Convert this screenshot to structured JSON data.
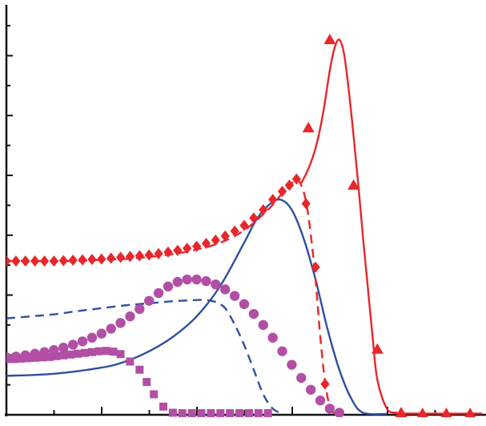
{
  "colors": {
    "red": "#e8262b",
    "blue": "#2f4f9f",
    "magenta": "#b24fa5",
    "axis": "#111111"
  },
  "chart_data": {
    "type": "line",
    "title": "",
    "xlabel": "",
    "ylabel": "",
    "xlim": [
      0,
      100
    ],
    "ylim": [
      0,
      100
    ],
    "grid": false,
    "legend": "none",
    "series": [
      {
        "key": "red-triangle-solid",
        "marker": "triangle",
        "line": "solid",
        "color": "red",
        "x": [
          62.0,
          63.5,
          65.0,
          66.5,
          68.0,
          69.0,
          70.0,
          71.0,
          72.0,
          73.0,
          74.0,
          75.0,
          76.0,
          77.0,
          78.0,
          80.0,
          82.0,
          84.0,
          100.0
        ],
        "y": [
          56.5,
          60.0,
          65.0,
          73.0,
          84.0,
          89.5,
          91.5,
          88.0,
          79.0,
          68.0,
          56.0,
          43.0,
          31.0,
          19.0,
          8.5,
          1.5,
          0.5,
          0.3,
          0.3
        ],
        "marker_x": [
          63.5,
          68.0,
          73.0,
          78.0,
          83.0,
          87.5,
          92.5,
          97.5
        ],
        "marker_y": [
          70.0,
          91.5,
          56.0,
          16.0,
          0.5,
          0.3,
          0.3,
          0.3
        ]
      },
      {
        "key": "red-diamond-dashed",
        "marker": "diamond",
        "line": "dashed",
        "color": "red",
        "x": [
          0,
          5,
          10,
          15,
          20,
          25,
          30,
          35,
          40,
          45,
          50,
          55,
          58,
          60,
          61,
          62,
          63,
          64,
          65,
          66,
          67,
          68,
          69
        ],
        "y": [
          37.5,
          37.5,
          37.5,
          37.5,
          37.8,
          38.0,
          38.5,
          39.2,
          40.3,
          42.0,
          45.0,
          50.0,
          54.0,
          56.5,
          57.5,
          56.0,
          52.0,
          44.0,
          33.0,
          19.0,
          8.0,
          2.0,
          0.3
        ],
        "marker_x": [
          0.0,
          2.0,
          4.0,
          6.0,
          8.0,
          10.0,
          12.0,
          14.0,
          16.0,
          18.0,
          20.0,
          22.0,
          24.0,
          26.0,
          28.0,
          30.0,
          32.0,
          34.0,
          36.0,
          38.0,
          40.0,
          42.0,
          44.0,
          46.0,
          48.0,
          50.0,
          52.0,
          54.0,
          56.0,
          58.0,
          59.5,
          61.0,
          63.0,
          65.0,
          67.0
        ],
        "marker_y": [
          37.5,
          37.5,
          37.5,
          37.5,
          37.5,
          37.5,
          37.6,
          37.7,
          37.8,
          37.9,
          38.0,
          38.2,
          38.4,
          38.6,
          38.8,
          39.0,
          39.3,
          39.7,
          40.1,
          40.6,
          41.1,
          41.8,
          42.6,
          43.6,
          44.8,
          46.2,
          48.0,
          50.0,
          52.5,
          54.5,
          56.0,
          57.5,
          51.5,
          36.0,
          7.5
        ]
      },
      {
        "key": "blue-solid",
        "marker": "none",
        "line": "solid",
        "color": "blue",
        "x": [
          0,
          10,
          20,
          25,
          30,
          35,
          40,
          45,
          50,
          52.5,
          55,
          57.5,
          60,
          62.5,
          65,
          67.5,
          70,
          72.5,
          75,
          80
        ],
        "y": [
          9.5,
          10.0,
          11.5,
          13.0,
          15.5,
          19.0,
          24.0,
          31.5,
          42.0,
          47.5,
          51.0,
          52.5,
          50.0,
          43.0,
          33.0,
          21.0,
          11.0,
          4.0,
          0.5,
          0.2
        ]
      },
      {
        "key": "blue-dashed",
        "marker": "none",
        "line": "dashed",
        "color": "blue",
        "x": [
          0,
          5,
          10,
          15,
          20,
          25,
          30,
          35,
          40,
          42,
          44,
          46,
          48,
          50,
          52,
          54,
          56,
          58
        ],
        "y": [
          23.5,
          24.0,
          24.5,
          25.3,
          26.0,
          26.7,
          27.2,
          27.7,
          28.0,
          28.0,
          27.5,
          26.0,
          22.0,
          17.0,
          11.0,
          5.0,
          1.5,
          0.3
        ]
      },
      {
        "key": "magenta-circle",
        "marker": "circle",
        "line": "none",
        "color": "magenta",
        "x": [
          0,
          44.5,
          71.0
        ],
        "y": [
          14.0,
          33.0,
          0.5
        ],
        "marker_x": [
          0.0,
          2.0,
          4.0,
          6.0,
          8.0,
          10.0,
          12.0,
          14.0,
          16.0,
          18.0,
          20.0,
          22.0,
          24.0,
          26.0,
          28.0,
          30.0,
          32.0,
          34.0,
          36.0,
          38.0,
          40.0,
          42.0,
          44.0,
          46.0,
          48.0,
          50.0,
          52.0,
          54.0,
          56.0,
          58.0,
          60.0,
          62.0,
          64.0,
          66.0,
          68.0,
          70.0
        ],
        "marker_y": [
          14.0,
          14.2,
          14.5,
          14.9,
          15.3,
          15.8,
          16.4,
          17.1,
          17.9,
          18.8,
          19.8,
          21.0,
          22.4,
          24.0,
          25.8,
          27.8,
          29.7,
          31.3,
          32.4,
          33.0,
          33.0,
          32.6,
          31.8,
          30.6,
          29.0,
          27.0,
          24.6,
          21.9,
          18.8,
          15.5,
          12.2,
          9.0,
          6.1,
          3.5,
          1.5,
          0.5
        ]
      },
      {
        "key": "magenta-square",
        "marker": "square",
        "line": "none",
        "color": "magenta",
        "x": [
          0,
          22.0,
          31.0
        ],
        "y": [
          13.5,
          15.5,
          0.5
        ],
        "marker_x": [
          0.0,
          1.5,
          3.0,
          4.5,
          6.0,
          7.5,
          9.0,
          10.5,
          12.0,
          13.5,
          15.0,
          16.5,
          18.0,
          19.5,
          21.0,
          22.5,
          24.0,
          26.0,
          28.0,
          29.5,
          31.0,
          33.0,
          35.0,
          37.0,
          39.0,
          41.0,
          43.0,
          45.0,
          47.0,
          49.0,
          51.0,
          53.0,
          55.0
        ],
        "marker_y": [
          13.6,
          13.6,
          13.7,
          13.8,
          13.9,
          14.0,
          14.1,
          14.3,
          14.5,
          14.7,
          14.9,
          15.1,
          15.3,
          15.5,
          15.6,
          15.4,
          14.8,
          13.0,
          11.0,
          8.0,
          5.0,
          2.0,
          0.5,
          0.4,
          0.4,
          0.4,
          0.4,
          0.4,
          0.4,
          0.4,
          0.4,
          0.4,
          0.4
        ]
      }
    ]
  }
}
